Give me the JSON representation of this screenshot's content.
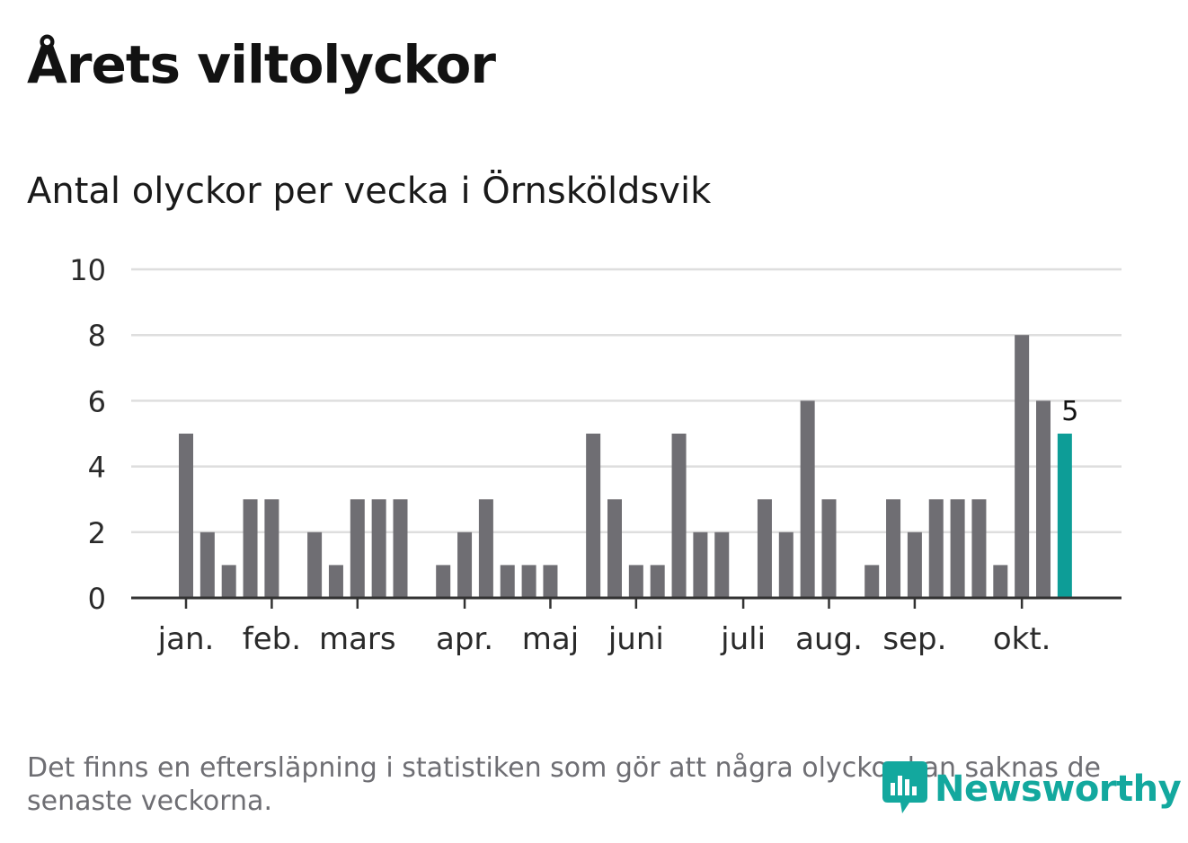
{
  "header": {
    "title": "Årets viltolyckor",
    "subtitle": "Antal olyckor per vecka i Örnsköldsvik"
  },
  "chart_data": {
    "type": "bar",
    "title": "Antal olyckor per vecka i Örnsköldsvik",
    "xlabel": "",
    "ylabel": "",
    "ylim": [
      0,
      10
    ],
    "yticks": [
      0,
      2,
      4,
      6,
      8,
      10
    ],
    "grid": true,
    "colors": {
      "bar": "#6f6e73",
      "highlight": "#0d9d97",
      "grid": "#dedede",
      "axis": "#333333"
    },
    "month_labels": [
      {
        "label": "jan.",
        "week": 1
      },
      {
        "label": "feb.",
        "week": 5
      },
      {
        "label": "mars",
        "week": 9
      },
      {
        "label": "apr.",
        "week": 14
      },
      {
        "label": "maj",
        "week": 18
      },
      {
        "label": "juni",
        "week": 22
      },
      {
        "label": "juli",
        "week": 27
      },
      {
        "label": "aug.",
        "week": 31
      },
      {
        "label": "sep.",
        "week": 35
      },
      {
        "label": "okt.",
        "week": 40
      }
    ],
    "weeks": [
      1,
      2,
      3,
      4,
      5,
      6,
      7,
      8,
      9,
      10,
      11,
      12,
      13,
      14,
      15,
      16,
      17,
      18,
      19,
      20,
      21,
      22,
      23,
      24,
      25,
      26,
      27,
      28,
      29,
      30,
      31,
      32,
      33,
      34,
      35,
      36,
      37,
      38,
      39,
      40,
      41,
      42
    ],
    "values": [
      5,
      2,
      1,
      3,
      3,
      0,
      2,
      1,
      3,
      3,
      3,
      0,
      1,
      2,
      3,
      1,
      1,
      1,
      0,
      5,
      3,
      1,
      1,
      5,
      2,
      2,
      0,
      3,
      2,
      6,
      3,
      0,
      1,
      3,
      2,
      3,
      3,
      3,
      1,
      8,
      6,
      5
    ],
    "highlight": {
      "week": 42,
      "value": 5,
      "label": "5"
    }
  },
  "footer": {
    "note": "Det finns en eftersläpning i statistiken som gör att några olyckor kan saknas de senaste veckorna.",
    "brand": "Newsworthy"
  }
}
